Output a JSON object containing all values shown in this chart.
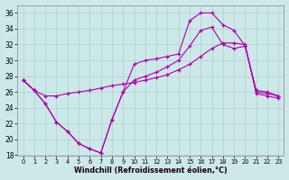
{
  "xlabel": "Windchill (Refroidissement éolien,°C)",
  "xlim": [
    -0.5,
    23.5
  ],
  "ylim": [
    18,
    37
  ],
  "xticks": [
    0,
    1,
    2,
    3,
    4,
    5,
    6,
    7,
    8,
    9,
    10,
    11,
    12,
    13,
    14,
    15,
    16,
    17,
    18,
    19,
    20,
    21,
    22,
    23
  ],
  "yticks": [
    18,
    20,
    22,
    24,
    26,
    28,
    30,
    32,
    34,
    36
  ],
  "background_color": "#cde8e8",
  "grid_color": "#b0d0d0",
  "line_color": "#aa00aa",
  "lA_x": [
    0,
    1,
    2,
    3,
    4,
    5,
    6,
    7,
    8,
    9,
    10,
    11,
    12,
    13,
    14,
    15,
    16,
    17,
    18,
    19,
    20,
    21,
    22,
    23
  ],
  "lA_y": [
    27.5,
    26.2,
    24.5,
    22.2,
    21.0,
    19.5,
    18.8,
    18.3,
    22.5,
    26.0,
    29.5,
    30.0,
    30.2,
    30.5,
    30.8,
    35.0,
    36.0,
    36.0,
    34.5,
    33.8,
    31.8,
    26.2,
    26.0,
    25.5
  ],
  "lB_x": [
    0,
    1,
    2,
    3,
    4,
    5,
    6,
    7,
    8,
    9,
    10,
    11,
    12,
    13,
    14,
    15,
    16,
    17,
    18,
    19,
    20,
    21,
    22,
    23
  ],
  "lB_y": [
    27.5,
    26.2,
    24.5,
    22.2,
    21.0,
    19.5,
    18.8,
    18.3,
    22.5,
    26.0,
    27.5,
    28.0,
    28.5,
    29.2,
    30.0,
    31.8,
    33.8,
    34.2,
    32.0,
    31.5,
    31.8,
    26.0,
    25.8,
    25.5
  ],
  "lC_x": [
    0,
    1,
    2,
    3,
    4,
    5,
    6,
    7,
    8,
    9,
    10,
    11,
    12,
    13,
    14,
    15,
    16,
    17,
    18,
    19,
    20,
    21,
    22,
    23
  ],
  "lC_y": [
    27.5,
    26.2,
    25.5,
    25.5,
    25.8,
    26.0,
    26.2,
    26.5,
    26.8,
    27.0,
    27.2,
    27.5,
    27.8,
    28.2,
    28.8,
    29.5,
    30.5,
    31.5,
    32.2,
    32.2,
    32.0,
    25.8,
    25.5,
    25.2
  ]
}
